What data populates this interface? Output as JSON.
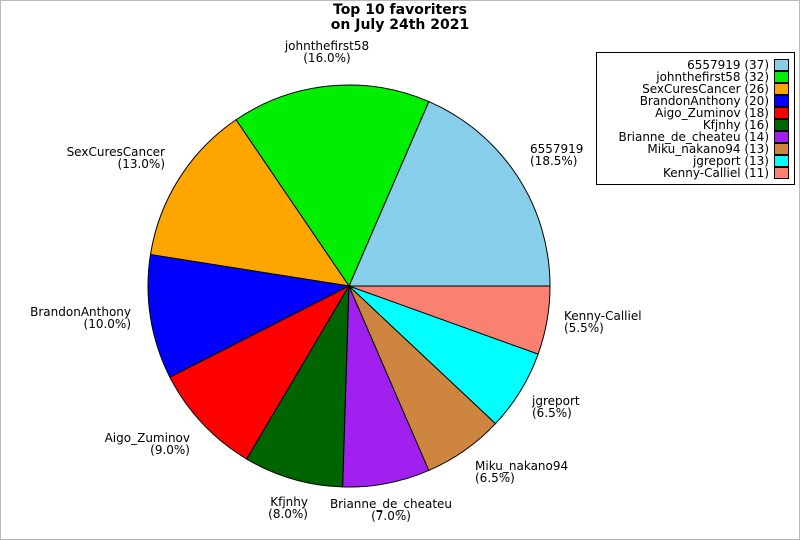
{
  "title": {
    "line1": "Top 10 favoriters",
    "line2": "on July 24th 2021"
  },
  "chart_data": {
    "type": "pie",
    "title": "Top 10 favoriters on July 24th 2021",
    "start_angle_deg": 0,
    "direction": "counterclockwise",
    "edge_color": "#000000",
    "legend_position": "top-right",
    "slices": [
      {
        "name": "6557919",
        "count": 37,
        "percent": 18.5,
        "pct_label": "(18.5%)",
        "legend_label": "6557919 (37)",
        "color": "#87CEEB"
      },
      {
        "name": "johnthefirst58",
        "count": 32,
        "percent": 16.0,
        "pct_label": "(16.0%)",
        "legend_label": "johnthefirst58 (32)",
        "color": "#00EE00"
      },
      {
        "name": "SexCuresCancer",
        "count": 26,
        "percent": 13.0,
        "pct_label": "(13.0%)",
        "legend_label": "SexCuresCancer (26)",
        "color": "#FFA500"
      },
      {
        "name": "BrandonAnthony",
        "count": 20,
        "percent": 10.0,
        "pct_label": "(10.0%)",
        "legend_label": "BrandonAnthony (20)",
        "color": "#0000FF"
      },
      {
        "name": "Aigo_Zuminov",
        "count": 18,
        "percent": 9.0,
        "pct_label": "(9.0%)",
        "legend_label": "Aigo_Zuminov (18)",
        "color": "#FF0000"
      },
      {
        "name": "Kfjnhy",
        "count": 16,
        "percent": 8.0,
        "pct_label": "(8.0%)",
        "legend_label": "Kfjnhy (16)",
        "color": "#006400"
      },
      {
        "name": "Brianne_de_cheateu",
        "count": 14,
        "percent": 7.0,
        "pct_label": "(7.0%)",
        "legend_label": "Brianne_de_cheateu (14)",
        "color": "#A020F0"
      },
      {
        "name": "Miku_nakano94",
        "count": 13,
        "percent": 6.5,
        "pct_label": "(6.5%)",
        "legend_label": "Miku_nakano94 (13)",
        "color": "#CD853F"
      },
      {
        "name": "jgreport",
        "count": 13,
        "percent": 6.5,
        "pct_label": "(6.5%)",
        "legend_label": "jgreport (13)",
        "color": "#00FFFF"
      },
      {
        "name": "Kenny-Calliel",
        "count": 11,
        "percent": 5.5,
        "pct_label": "(5.5%)",
        "legend_label": "Kenny-Calliel (11)",
        "color": "#FA8072"
      }
    ]
  }
}
